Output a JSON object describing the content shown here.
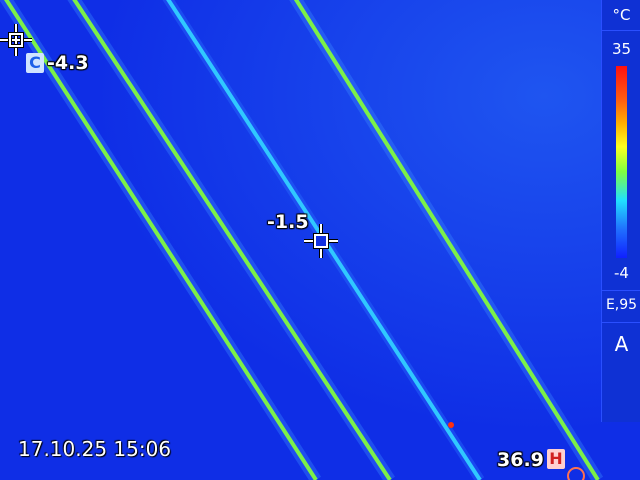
{
  "scale": {
    "unit": "°C",
    "max": "35",
    "min": "-4",
    "emissivity": "E,95",
    "mode": "A"
  },
  "spots": {
    "cold": {
      "badge": "C",
      "value": "-4.3"
    },
    "center": {
      "value": "-1.5"
    },
    "hot": {
      "badge": "H",
      "value": "36.9"
    }
  },
  "timestamp": "17.10.25 15:06",
  "colors": {
    "background": "#0f2fe6",
    "wire_warm": "#7cf048",
    "wire_cool": "#30c8ff"
  }
}
